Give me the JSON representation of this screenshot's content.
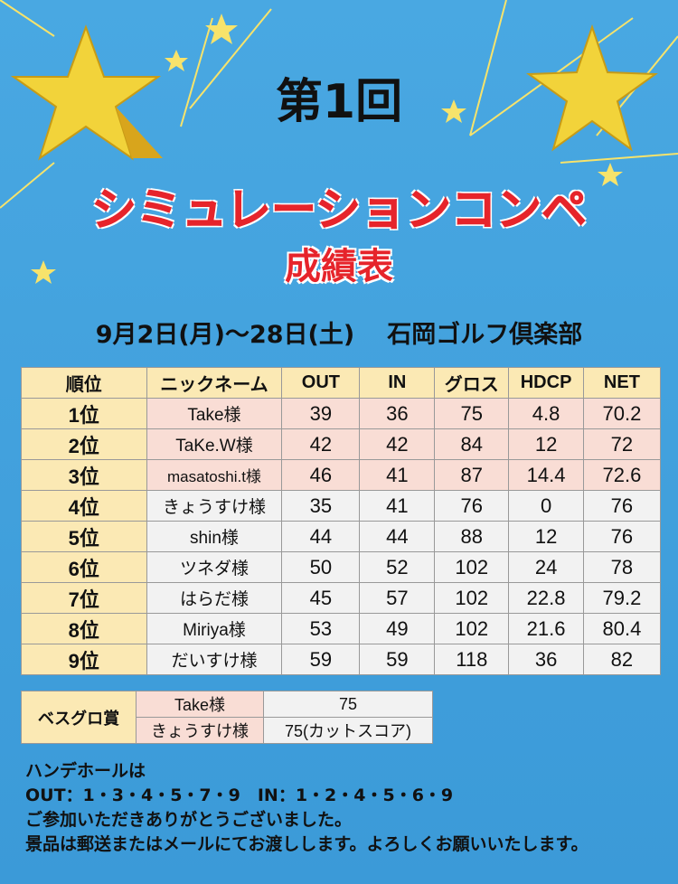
{
  "header": {
    "title_pre": "第",
    "title_num": "1",
    "title_post": "回",
    "subtitle": "シミュレーションコンペ",
    "subtitle2": "成績表",
    "date_range": "9月2日(月)〜28日(土)",
    "venue": "石岡ゴルフ倶楽部"
  },
  "results": {
    "columns": [
      "順位",
      "ニックネーム",
      "OUT",
      "IN",
      "グロス",
      "HDCP",
      "NET"
    ],
    "rows": [
      [
        "1位",
        "Take様",
        "39",
        "36",
        "75",
        "4.8",
        "70.2"
      ],
      [
        "2位",
        "TaKe.W様",
        "42",
        "42",
        "84",
        "12",
        "72"
      ],
      [
        "3位",
        "masatoshi.t様",
        "46",
        "41",
        "87",
        "14.4",
        "72.6"
      ],
      [
        "4位",
        "きょうすけ様",
        "35",
        "41",
        "76",
        "0",
        "76"
      ],
      [
        "5位",
        "shin様",
        "44",
        "44",
        "88",
        "12",
        "76"
      ],
      [
        "6位",
        "ツネダ様",
        "50",
        "52",
        "102",
        "24",
        "78"
      ],
      [
        "7位",
        "はらだ様",
        "45",
        "57",
        "102",
        "22.8",
        "79.2"
      ],
      [
        "8位",
        "Miriya様",
        "53",
        "49",
        "102",
        "21.6",
        "80.4"
      ],
      [
        "9位",
        "だいすけ様",
        "59",
        "59",
        "118",
        "36",
        "82"
      ]
    ]
  },
  "best_gross": {
    "label": "ベスグロ賞",
    "entries": [
      {
        "name": "Take様",
        "score": "75"
      },
      {
        "name": "きょうすけ様",
        "score": "75(カットスコア)"
      }
    ]
  },
  "footer": {
    "line1": "ハンデホールは",
    "line2": "OUT：1・3・4・5・7・9　IN：1・2・4・5・6・9",
    "line3": "ご参加いただきありがとうございました。",
    "line4": "景品は郵送またはメールにてお渡しします。よろしくお願いいたします。"
  },
  "colors": {
    "background": "#3e9fdb",
    "title_red": "#e6242b",
    "header_cell": "#fbe9b4",
    "pink_row": "#f9ddd5",
    "gray_row": "#f2f2f2"
  }
}
